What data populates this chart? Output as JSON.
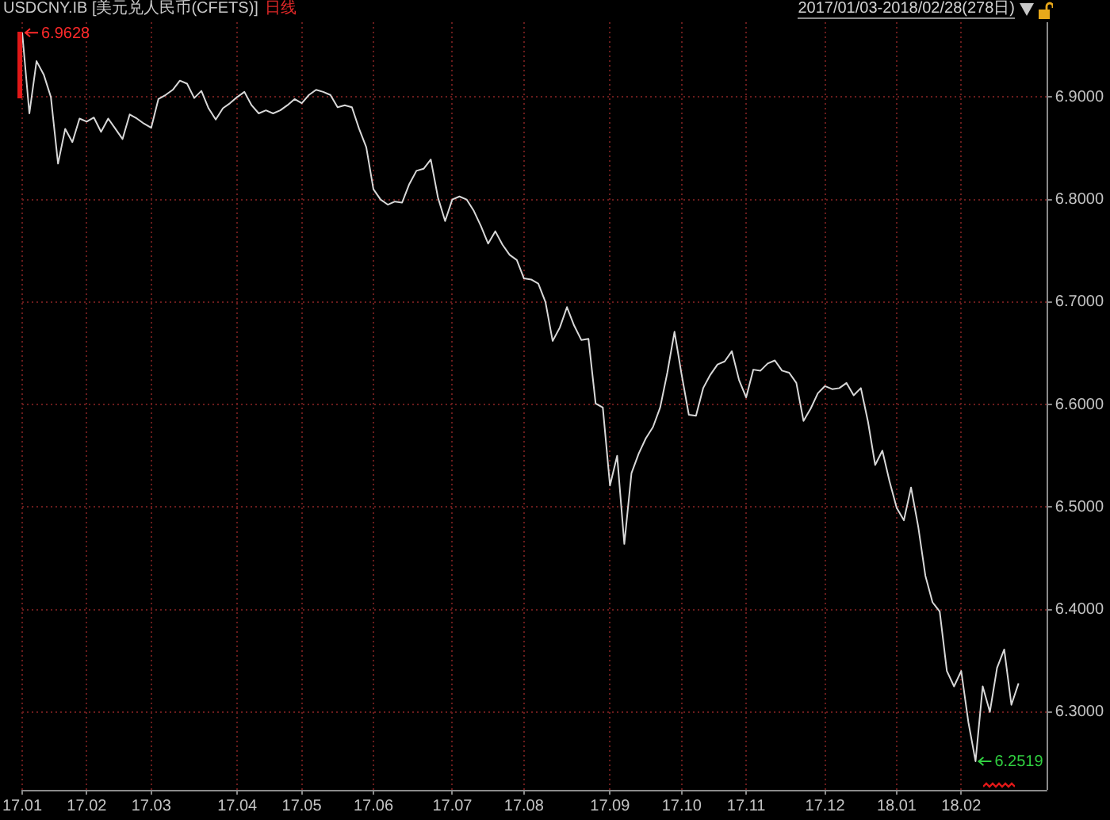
{
  "chart_data": {
    "type": "line",
    "title": "USDCNY.IB [美元兑人民币(CFETS)]",
    "subtitle": "日线",
    "annotations": [
      "2017/01/03-2018/02/28(278日)",
      {
        "text": "6.9628",
        "x": "17.01",
        "y": 6.9628
      },
      "6.2519"
    ],
    "categories": [
      "17.01",
      null,
      null,
      null,
      null,
      null,
      null,
      null,
      null,
      "17.02",
      null,
      null,
      null,
      null,
      null,
      null,
      null,
      null,
      "17.03",
      null,
      null,
      null,
      null,
      null,
      null,
      null,
      null,
      null,
      null,
      null,
      "17.04",
      null,
      null,
      null,
      null,
      null,
      null,
      null,
      null,
      "17.05",
      null,
      null,
      null,
      null,
      null,
      null,
      null,
      null,
      null,
      "17.06",
      null,
      null,
      null,
      null,
      null,
      null,
      null,
      null,
      null,
      null,
      "17.07",
      null,
      null,
      null,
      null,
      null,
      null,
      null,
      null,
      null,
      "17.08",
      null,
      null,
      null,
      null,
      null,
      null,
      null,
      null,
      null,
      null,
      null,
      "17.09",
      null,
      null,
      null,
      null,
      null,
      null,
      null,
      null,
      null,
      "17.10",
      null,
      null,
      null,
      null,
      null,
      null,
      null,
      null,
      "17.11",
      null,
      null,
      null,
      null,
      null,
      null,
      null,
      null,
      null,
      null,
      "17.12",
      null,
      null,
      null,
      null,
      null,
      null,
      null,
      null,
      null,
      "18.01",
      null,
      null,
      null,
      null,
      null,
      null,
      null,
      null,
      "18.02",
      null,
      null,
      null,
      null,
      null,
      null,
      null,
      null,
      null,
      null,
      null,
      null
    ],
    "values": [
      6.9628,
      6.884,
      6.935,
      6.922,
      6.9,
      6.835,
      6.869,
      6.856,
      6.879,
      6.876,
      6.88,
      6.866,
      6.879,
      6.869,
      6.859,
      6.883,
      6.879,
      6.874,
      6.87,
      6.898,
      6.902,
      6.907,
      6.916,
      6.913,
      6.899,
      6.906,
      6.889,
      6.878,
      6.889,
      6.894,
      6.9,
      6.905,
      6.892,
      6.884,
      6.887,
      6.884,
      6.887,
      6.892,
      6.898,
      6.894,
      6.902,
      6.907,
      6.905,
      6.902,
      6.89,
      6.892,
      6.89,
      6.869,
      6.851,
      6.81,
      6.8,
      6.795,
      6.798,
      6.797,
      6.815,
      6.828,
      6.83,
      6.839,
      6.802,
      6.779,
      6.8,
      6.803,
      6.8,
      6.789,
      6.774,
      6.757,
      6.769,
      6.756,
      6.746,
      6.741,
      6.723,
      6.722,
      6.718,
      6.7,
      6.662,
      6.675,
      6.695,
      6.677,
      6.663,
      6.664,
      6.601,
      6.597,
      6.521,
      6.55,
      6.464,
      6.533,
      6.552,
      6.567,
      6.578,
      6.597,
      6.631,
      6.671,
      6.629,
      6.59,
      6.589,
      6.616,
      6.629,
      6.639,
      6.642,
      6.652,
      6.624,
      6.607,
      6.634,
      6.633,
      6.64,
      6.643,
      6.633,
      6.631,
      6.621,
      6.584,
      6.596,
      6.611,
      6.618,
      6.615,
      6.616,
      6.621,
      6.609,
      6.616,
      6.583,
      6.541,
      6.555,
      6.525,
      6.499,
      6.487,
      6.519,
      6.481,
      6.433,
      6.407,
      6.398,
      6.34,
      6.325,
      6.34,
      6.29,
      6.2519,
      6.325,
      6.3,
      6.343,
      6.361,
      6.307,
      6.328,
      null,
      null,
      null,
      null
    ],
    "color": "#d8d8d8",
    "marker": "none",
    "grid": true,
    "ylim": [
      6.224,
      6.973
    ],
    "yticks": [
      {
        "value": 6.3,
        "label": "6.3000"
      },
      {
        "value": 6.4,
        "label": "6.4000"
      },
      {
        "value": 6.5,
        "label": "6.5000"
      },
      {
        "value": 6.6,
        "label": "6.6000"
      },
      {
        "value": 6.7,
        "label": "6.7000"
      },
      {
        "value": 6.8,
        "label": "6.8000"
      },
      {
        "value": 6.9,
        "label": "6.9000"
      }
    ]
  }
}
